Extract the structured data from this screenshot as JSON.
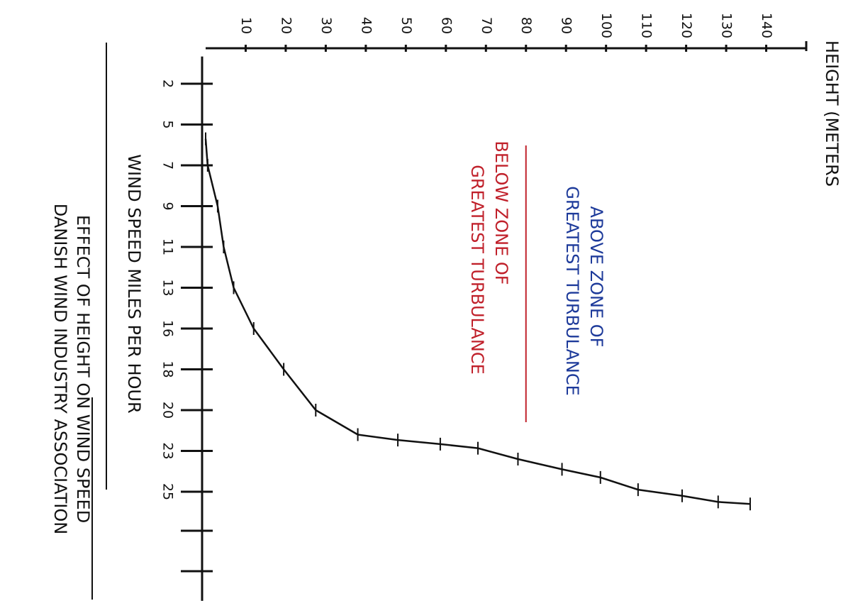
{
  "chart_data": {
    "type": "line",
    "title": "EFFECT OF HEIGHT ON WIND SPEED",
    "subtitle": "DANISH WIND INDUSTRY ASSOCIATION",
    "x_label": "WIND SPEED MILES PER HOUR",
    "y_label": "HEIGHT (METERS",
    "x": [
      5.7,
      7,
      9,
      11,
      13,
      16,
      18,
      20,
      21.8,
      22.2,
      22.5,
      22.8,
      23.4,
      23.9,
      24.3,
      24.9,
      25.2,
      25.5,
      25.6
    ],
    "series": [
      {
        "color": "#111111",
        "values": [
          0,
          0.5,
          3,
          4.5,
          7,
          12,
          19.5,
          27.5,
          38,
          48,
          58.6,
          68,
          78,
          89,
          98.6,
          108,
          119,
          128,
          136
        ]
      }
    ],
    "xlim": [
      0,
      30
    ],
    "xticks": [
      2,
      5,
      7,
      9,
      11,
      13,
      16,
      18,
      20,
      23,
      25
    ],
    "ylim": [
      0,
      150
    ],
    "yticks": [
      10,
      20,
      30,
      40,
      50,
      60,
      70,
      80,
      90,
      100,
      110,
      120,
      130,
      140
    ],
    "zone_boundary": {
      "value": 80,
      "color": "#c0202a"
    },
    "annotations": [
      {
        "lines": [
          "ABOVE ZONE OF",
          "GREATEST TURBULANCE"
        ],
        "color": "#1d3a9a"
      },
      {
        "lines": [
          "BELOW ZONE OF",
          "GREATEST TURBULANCE"
        ],
        "color": "#c0202a"
      }
    ]
  }
}
